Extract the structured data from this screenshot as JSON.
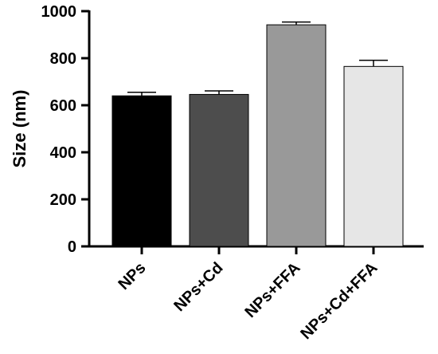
{
  "chart_data": {
    "type": "bar",
    "title": "",
    "xlabel": "",
    "ylabel": "Size (nm)",
    "ylim": [
      0,
      1000
    ],
    "yticks": [
      0,
      200,
      400,
      600,
      800,
      1000
    ],
    "ytick_labels": [
      "0",
      "200",
      "400",
      "600",
      "800",
      "1000"
    ],
    "categories": [
      "NPs",
      "NPs+Cd",
      "NPs+FFA",
      "NPs+Cd+FFA"
    ],
    "values": [
      640,
      646,
      942,
      765
    ],
    "errors": [
      15,
      15,
      12,
      26
    ],
    "bar_colors": [
      "#000000",
      "#4d4d4d",
      "#999999",
      "#e6e6e6"
    ],
    "grid": false,
    "legend": "none"
  }
}
